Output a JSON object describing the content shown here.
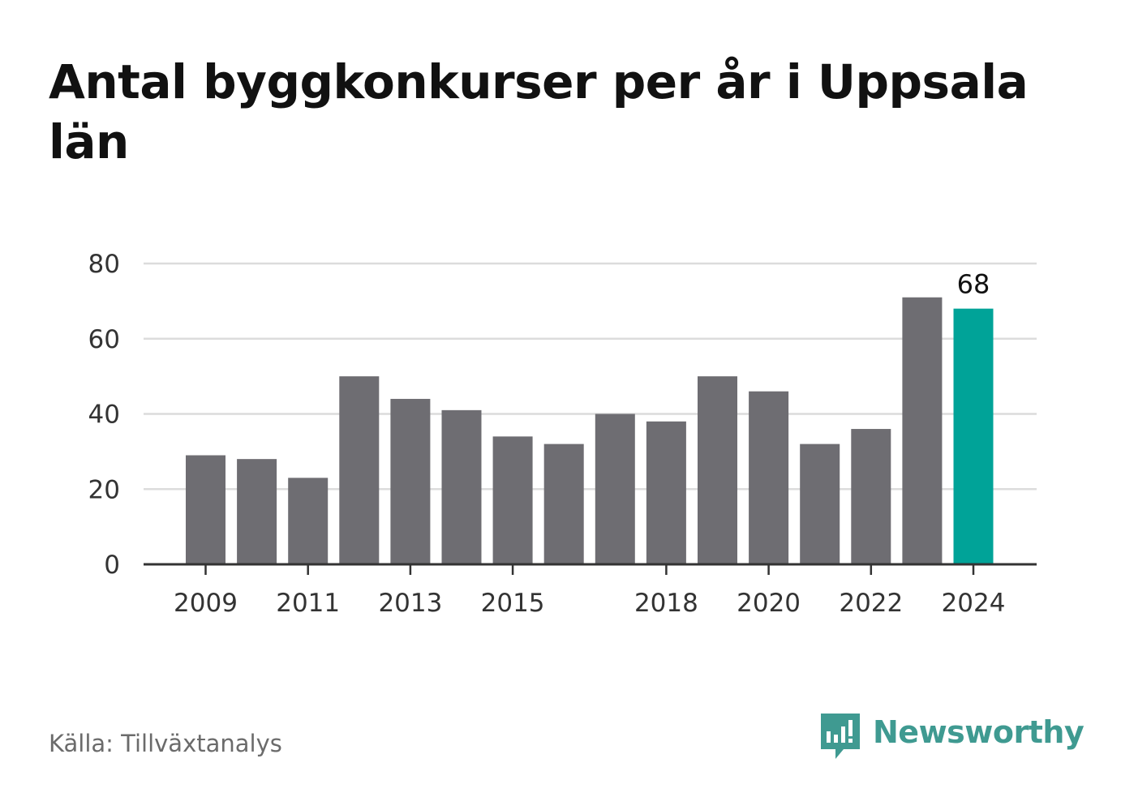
{
  "title": "Antal byggkonkurser per år i Uppsala län",
  "source": "Källa: Tillväxtanalys",
  "brand": {
    "name": "Newsworthy",
    "color": "#3f9a91",
    "icon": "bar-chart-speech-bubble-icon"
  },
  "chart_data": {
    "type": "bar",
    "title": "Antal byggkonkurser per år i Uppsala län",
    "xlabel": "",
    "ylabel": "",
    "categories": [
      "2009",
      "2010",
      "2011",
      "2012",
      "2013",
      "2014",
      "2015",
      "2016",
      "2017",
      "2018",
      "2019",
      "2020",
      "2021",
      "2022",
      "2023",
      "2024"
    ],
    "values": [
      29,
      28,
      23,
      50,
      44,
      41,
      34,
      32,
      40,
      38,
      50,
      46,
      32,
      36,
      71,
      68
    ],
    "x_tick_labels": [
      "2009",
      "2011",
      "2013",
      "2015",
      "2018",
      "2020",
      "2022",
      "2024"
    ],
    "y_ticks": [
      0,
      20,
      40,
      60,
      80
    ],
    "ylim": [
      0,
      80
    ],
    "grid": true,
    "bar_color": "#6e6d72",
    "highlight": {
      "category": "2024",
      "color": "#00a398",
      "label": "68"
    }
  }
}
